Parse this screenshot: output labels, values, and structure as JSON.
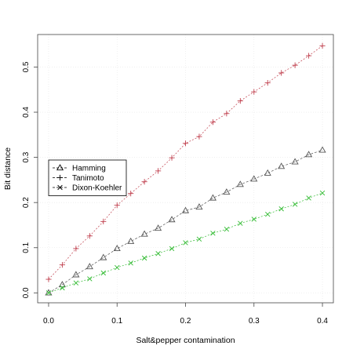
{
  "chart_data": {
    "type": "line",
    "title": "",
    "xlabel": "Salt&pepper contamination",
    "ylabel": "Bit distance",
    "xlim": [
      -0.016,
      0.416
    ],
    "ylim": [
      -0.022,
      0.572
    ],
    "xticks": [
      0.0,
      0.1,
      0.2,
      0.3,
      0.4
    ],
    "xtick_labels": [
      "0.0",
      "0.1",
      "0.2",
      "0.3",
      "0.4"
    ],
    "yticks": [
      0.0,
      0.1,
      0.2,
      0.3,
      0.4,
      0.5
    ],
    "ytick_labels": [
      "0.0",
      "0.1",
      "0.2",
      "0.3",
      "0.4",
      "0.5"
    ],
    "grid": true,
    "legend_position": "left-middle",
    "x": [
      0.0,
      0.02,
      0.04,
      0.06,
      0.08,
      0.1,
      0.12,
      0.14,
      0.16,
      0.18,
      0.2,
      0.22,
      0.24,
      0.26,
      0.28,
      0.3,
      0.32,
      0.34,
      0.36,
      0.38,
      0.4
    ],
    "series": [
      {
        "name": "Hamming",
        "marker": "triangle",
        "color": "#555555",
        "dash": "3,2",
        "values": [
          0.0,
          0.018,
          0.04,
          0.058,
          0.078,
          0.098,
          0.114,
          0.13,
          0.143,
          0.162,
          0.182,
          0.19,
          0.21,
          0.223,
          0.24,
          0.252,
          0.265,
          0.28,
          0.29,
          0.306,
          0.316
        ]
      },
      {
        "name": "Tanimoto",
        "marker": "plus",
        "color": "#c0404e",
        "dash": "2,2",
        "values": [
          0.03,
          0.062,
          0.098,
          0.126,
          0.158,
          0.194,
          0.22,
          0.246,
          0.27,
          0.299,
          0.331,
          0.346,
          0.378,
          0.397,
          0.425,
          0.445,
          0.465,
          0.487,
          0.504,
          0.525,
          0.547
        ]
      },
      {
        "name": "Dixon-Koehler",
        "marker": "x",
        "color": "#33bb33",
        "dash": "2,2",
        "values": [
          0.0,
          0.011,
          0.022,
          0.031,
          0.044,
          0.056,
          0.066,
          0.077,
          0.087,
          0.098,
          0.111,
          0.119,
          0.132,
          0.141,
          0.154,
          0.163,
          0.174,
          0.186,
          0.196,
          0.21,
          0.221
        ]
      }
    ]
  }
}
